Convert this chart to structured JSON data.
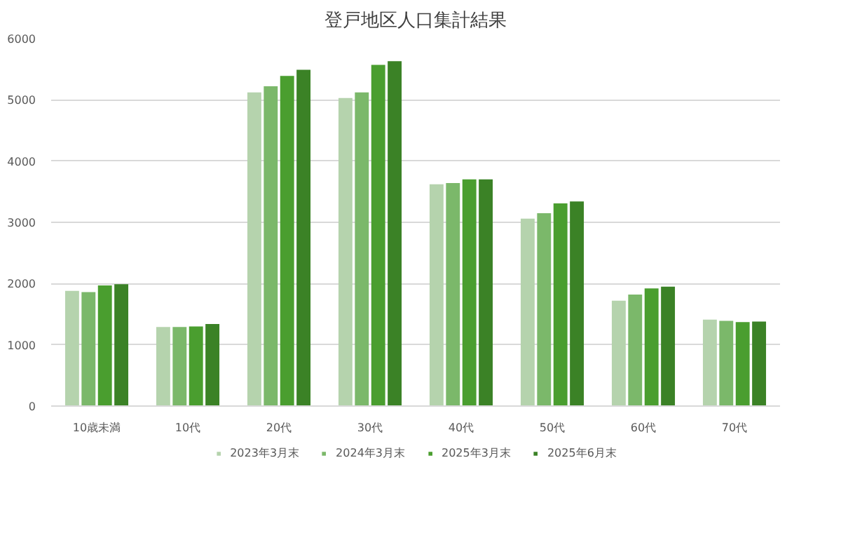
{
  "chart_data": {
    "type": "bar",
    "title": "登戸地区人口集計結果",
    "categories": [
      "10歳未満",
      "10代",
      "20代",
      "30代",
      "40代",
      "50代",
      "60代",
      "70代"
    ],
    "series": [
      {
        "name": "2023年3月末",
        "color": "#b5d3ad",
        "values": [
          1880,
          1290,
          5120,
          5030,
          3620,
          3060,
          1720,
          1410
        ]
      },
      {
        "name": "2024年3月末",
        "color": "#7bb86a",
        "values": [
          1860,
          1290,
          5220,
          5120,
          3640,
          3150,
          1820,
          1390
        ]
      },
      {
        "name": "2025年3月末",
        "color": "#4a9e2f",
        "values": [
          1970,
          1300,
          5390,
          5570,
          3700,
          3310,
          1920,
          1370
        ]
      },
      {
        "name": "2025年6月末",
        "color": "#3b8226",
        "values": [
          1990,
          1340,
          5490,
          5630,
          3700,
          3340,
          1950,
          1380
        ]
      }
    ],
    "ylim": [
      0,
      6000
    ],
    "yticks": [
      0,
      1000,
      2000,
      3000,
      4000,
      5000,
      6000
    ],
    "grid": "y",
    "legend": "bottom"
  }
}
